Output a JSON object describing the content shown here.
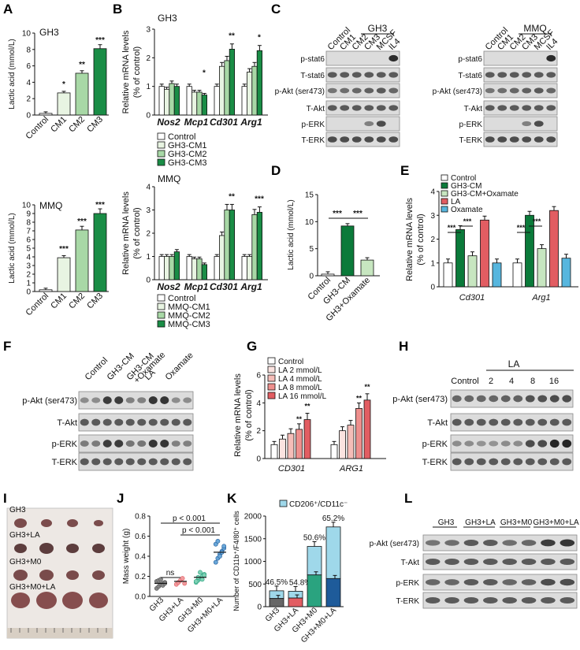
{
  "panel_letters": [
    "A",
    "B",
    "C",
    "D",
    "E",
    "F",
    "G",
    "H",
    "I",
    "J",
    "K",
    "L"
  ],
  "colors": {
    "control": "#ffffff",
    "cm1": "#e8f4e2",
    "cm2": "#a8d8a6",
    "cm3": "#1a8d46",
    "dark_green": "#0b7a3a",
    "light_green": "#c7e6c0",
    "red": "#e25d62",
    "pink1": "#fbe3e0",
    "pink2": "#f5bdb8",
    "pink3": "#ee8f8d",
    "blue": "#57b6de",
    "teal": "#2aa37f",
    "navy": "#1e5b9a",
    "grey": "#666666",
    "lightblue": "#9fd8ea"
  },
  "panelA": {
    "top_title": "GH3",
    "bottom_title": "MMQ",
    "ylabel": "Lactic acid (mmol/L)",
    "categories": [
      "Control",
      "CM1",
      "CM2",
      "CM3"
    ],
    "top_values": [
      0.2,
      2.7,
      5.1,
      8.1
    ],
    "top_sig": [
      "",
      "*",
      "**",
      "***"
    ],
    "top_yticks": [
      "0",
      "2",
      "4",
      "6",
      "8",
      "10"
    ],
    "bottom_values": [
      0.2,
      3.9,
      7.1,
      9.0
    ],
    "bottom_sig": [
      "",
      "***",
      "***",
      "***"
    ],
    "bottom_yticks": [
      "0",
      "1",
      "2",
      "3",
      "4",
      "5",
      "6",
      "7",
      "8",
      "9",
      "10"
    ]
  },
  "panelB": {
    "top_title": "GH3",
    "bottom_title": "MMQ",
    "ylabel_line1": "Relative  mRNA levels",
    "ylabel_line2": "(% of control)",
    "genes": [
      "Nos2",
      "Mcp1",
      "Cd301",
      "Arg1"
    ],
    "top_legend": [
      "Control",
      "GH3-CM1",
      "GH3-CM2",
      "GH3-CM3"
    ],
    "bottom_legend": [
      "Control",
      "MMQ-CM1",
      "MMQ-CM2",
      "MMQ-CM3"
    ],
    "top_yticks": [
      "0",
      "1",
      "2",
      "3"
    ],
    "bottom_yticks": [
      "0",
      "1",
      "2",
      "3",
      "4"
    ],
    "top_values": [
      [
        1.0,
        0.9,
        1.1,
        1.0
      ],
      [
        1.0,
        0.8,
        0.8,
        0.7
      ],
      [
        1.0,
        1.7,
        1.9,
        2.3
      ],
      [
        1.0,
        1.5,
        1.7,
        2.25
      ]
    ],
    "top_sig": [
      "",
      "*",
      "**",
      "*"
    ],
    "bottom_values": [
      [
        1.0,
        1.0,
        1.0,
        1.2
      ],
      [
        1.0,
        0.9,
        0.9,
        0.65
      ],
      [
        1.0,
        1.9,
        3.0,
        3.0
      ],
      [
        1.0,
        1.0,
        2.8,
        2.9
      ]
    ],
    "bottom_sig": [
      "",
      "",
      "**",
      "***"
    ]
  },
  "panelC": {
    "gh3_header": "GH3",
    "mmq_header": "MMQ",
    "lanes": [
      "Control",
      "CM1",
      "CM2",
      "CM3",
      "MCSF",
      "IL4"
    ],
    "rows": [
      "p-stat6",
      "T-stat6",
      "p-Akt (ser473)",
      "T-Akt",
      "p-ERK",
      "T-ERK"
    ]
  },
  "panelD": {
    "ylabel": "Lactic acid (mmol/L)",
    "categories": [
      "Control",
      "GH3-CM",
      "GH3+Oxamate"
    ],
    "values": [
      0.3,
      9.2,
      2.9
    ],
    "yticks": [
      "0",
      "5",
      "10",
      "15"
    ],
    "sig": [
      "***",
      "***"
    ]
  },
  "panelE": {
    "ylabel_line1": "Relative  mRNA  levels",
    "ylabel_line2": "(% of control)",
    "genes": [
      "Cd301",
      "Arg1"
    ],
    "legend": [
      "Control",
      "GH3-CM",
      "GH3-CM+Oxamate",
      "LA",
      "Oxamate"
    ],
    "yticks": [
      "0",
      "1",
      "2",
      "3",
      "4"
    ],
    "values": [
      [
        1.0,
        2.4,
        1.3,
        2.8,
        1.0
      ],
      [
        1.0,
        3.0,
        1.6,
        3.2,
        1.2
      ]
    ],
    "sig": [
      "***",
      "***",
      "***",
      "***"
    ]
  },
  "panelF": {
    "lanes": [
      "Control",
      "GH3-CM",
      "GH3-CM\n+Oxamate",
      "LA",
      "Oxamate"
    ],
    "rows": [
      "p-Akt (ser473)",
      "T-Akt",
      "p-ERK",
      "T-ERK"
    ]
  },
  "panelG": {
    "ylabel_line1": "Relative  mRNA  levels",
    "ylabel_line2": "(% of control)",
    "genes": [
      "CD301",
      "ARG1"
    ],
    "legend": [
      "Control",
      "LA 2 mmol/L",
      "LA 4 mmol/L",
      "LA 8 mmol/L",
      "LA 16 mmol/L"
    ],
    "yticks": [
      "0",
      "2",
      "4",
      "6"
    ],
    "values": [
      [
        1.0,
        1.4,
        1.8,
        2.1,
        2.8
      ],
      [
        1.0,
        2.0,
        2.4,
        3.6,
        4.2
      ]
    ],
    "sig": [
      "**",
      "**",
      "**",
      "**"
    ]
  },
  "panelH": {
    "group": "LA",
    "lanes": [
      "Control",
      "2",
      "4",
      "8",
      "16"
    ],
    "rows": [
      "p-Akt (ser473)",
      "T-Akt",
      "p-ERK",
      "T-ERK"
    ]
  },
  "panelI": {
    "groups": [
      "GH3",
      "GH3+LA",
      "GH3+M0",
      "GH3+M0+LA"
    ]
  },
  "panelJ": {
    "ylabel": "Mass weight (g)",
    "categories": [
      "GH3",
      "GH3+LA",
      "GH3+M0",
      "GH3+M0+LA"
    ],
    "yticks": [
      "0.0",
      "0.2",
      "0.4",
      "0.6",
      "0.8"
    ],
    "means": [
      0.13,
      0.15,
      0.19,
      0.44
    ],
    "points": [
      [
        0.08,
        0.1,
        0.12,
        0.13,
        0.14,
        0.15,
        0.16,
        0.17,
        0.11,
        0.13
      ],
      [
        0.12,
        0.14,
        0.16,
        0.18,
        0.13
      ],
      [
        0.14,
        0.16,
        0.18,
        0.2,
        0.22,
        0.15,
        0.19,
        0.24,
        0.17,
        0.21
      ],
      [
        0.34,
        0.38,
        0.42,
        0.45,
        0.48,
        0.52,
        0.55,
        0.4,
        0.44,
        0.5
      ]
    ],
    "sig": [
      "p < 0.001",
      "p < 0.001",
      "ns"
    ]
  },
  "panelK": {
    "legend": "CD206⁺/CD11c⁻",
    "ylabel": "Number of CD11b⁺/F4/80⁺ cells",
    "categories": [
      "GH3",
      "GH3+LA",
      "GH3+M0",
      "GH3+M0+LA"
    ],
    "yticks": [
      "0",
      "500",
      "1000",
      "1500",
      "2000"
    ],
    "totals": [
      350,
      340,
      1330,
      1760
    ],
    "bottom": [
      180,
      190,
      700,
      620
    ],
    "percents": [
      "46.5%",
      "54.8%",
      "50.6%",
      "65.2%"
    ],
    "bottom_colors": [
      "#666666",
      "#e25d62",
      "#2aa37f",
      "#1e5b9a"
    ]
  },
  "panelL": {
    "lanes": [
      "GH3",
      "GH3+LA",
      "GH3+M0",
      "GH3+M0+LA"
    ],
    "rows": [
      "p-Akt (ser473)",
      "T-Akt",
      "p-ERK",
      "T-ERK"
    ]
  }
}
